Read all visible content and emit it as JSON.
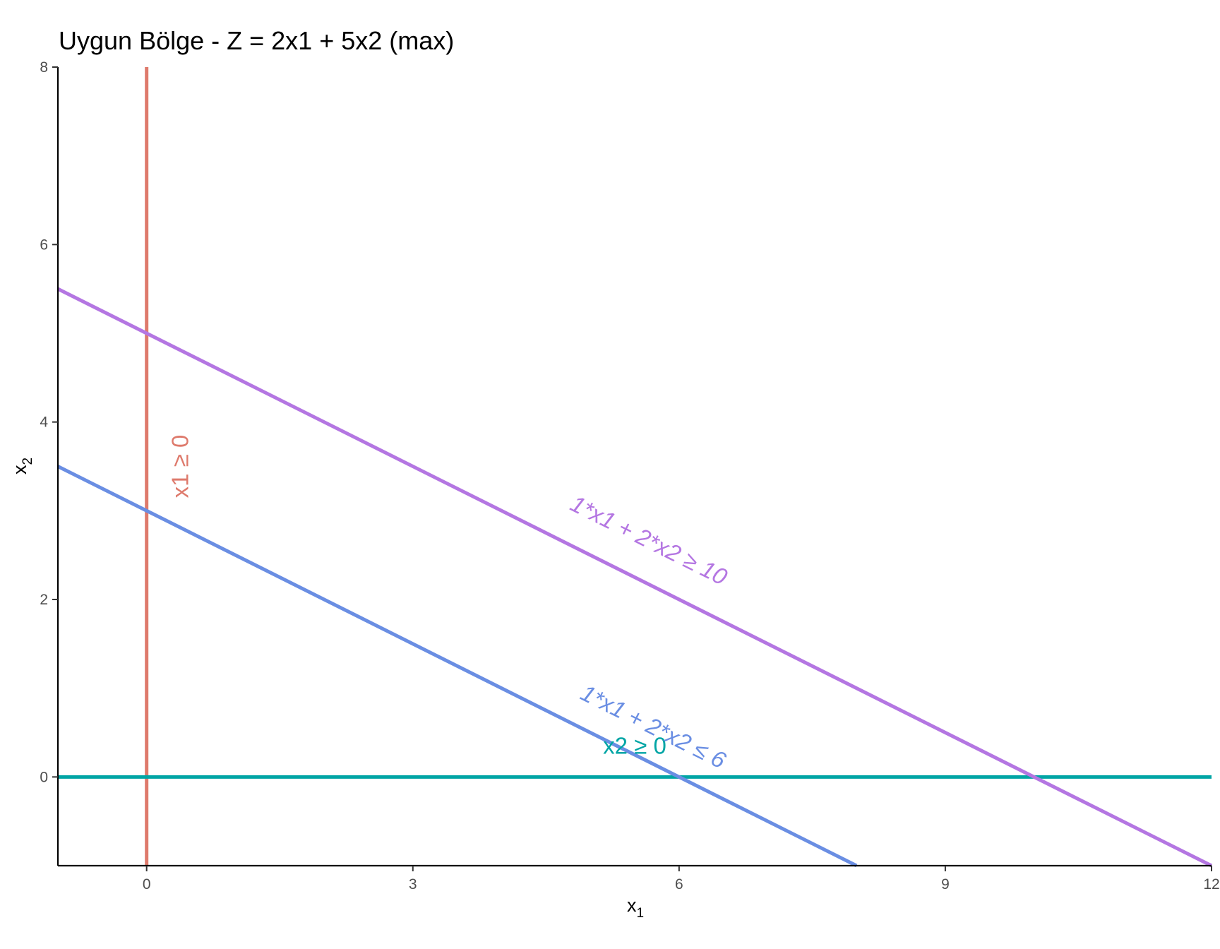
{
  "chart_data": {
    "type": "line",
    "title": "Uygun Bölge - Z = 2x1 + 5x2 (max)",
    "xlabel": {
      "main": "x",
      "sub": "1"
    },
    "ylabel": {
      "main": "x",
      "sub": "2"
    },
    "xlim": [
      -1,
      12
    ],
    "ylim": [
      -1,
      8
    ],
    "x_ticks": [
      0,
      3,
      6,
      9,
      12
    ],
    "y_ticks": [
      0,
      2,
      4,
      6,
      8
    ],
    "grid": false,
    "legend": "none",
    "series": [
      {
        "name": "x1 ≥ 0",
        "color": "#de7a6c",
        "kind": "vertical",
        "x": [
          0,
          0
        ],
        "y": [
          -1,
          8
        ],
        "label_at": [
          0.4,
          3.5
        ],
        "label_italic": false
      },
      {
        "name": "x2 ≥ 0",
        "color": "#00a5a5",
        "kind": "horizontal",
        "x": [
          -1,
          12
        ],
        "y": [
          0,
          0
        ],
        "label_at": [
          5.5,
          0.33
        ],
        "label_italic": false
      },
      {
        "name": "1*x1 + 2*x2 ≤ 6",
        "color": "#6a8ee3",
        "kind": "line",
        "x": [
          -1,
          8
        ],
        "y": [
          3.5,
          -1
        ],
        "label_at": [
          5.7,
          0.55
        ],
        "label_italic": true
      },
      {
        "name": "1*x1 + 2*x2 ≥ 10",
        "color": "#b476e2",
        "kind": "line",
        "x": [
          -1,
          12
        ],
        "y": [
          5.5,
          -1
        ],
        "label_at": [
          5.65,
          2.65
        ],
        "label_italic": true
      }
    ]
  }
}
